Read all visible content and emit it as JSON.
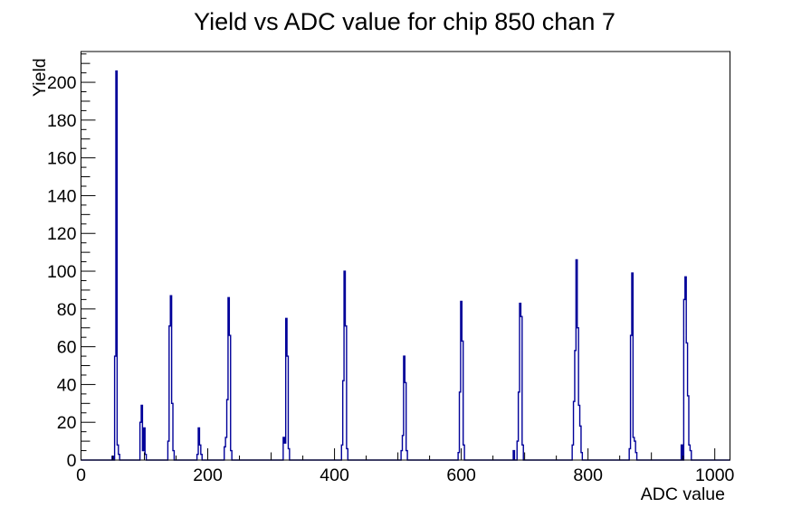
{
  "chart_data": {
    "type": "bar",
    "subtype": "histogram-step-outline",
    "title": "Yield vs ADC value for chip 850 chan 7",
    "xlabel": "ADC value",
    "ylabel": "Yield",
    "xlim": [
      0,
      1024
    ],
    "ylim": [
      0,
      216.3
    ],
    "xticks_major": [
      0,
      200,
      400,
      600,
      800,
      1000
    ],
    "yticks_major": [
      0,
      20,
      40,
      60,
      80,
      100,
      120,
      140,
      160,
      180,
      200
    ],
    "x_minor_step": 50,
    "x_medium_step": 100,
    "y_minor_step": 5,
    "y_medium_step": 10,
    "grid": false,
    "legend": false,
    "frame_color": "#000000",
    "line_color": "#000099",
    "bin_width": 2,
    "bins": [
      [
        50,
        2
      ],
      [
        54,
        55
      ],
      [
        56,
        206
      ],
      [
        58,
        8
      ],
      [
        60,
        3
      ],
      [
        94,
        20
      ],
      [
        96,
        29
      ],
      [
        98,
        5
      ],
      [
        100,
        17
      ],
      [
        102,
        3
      ],
      [
        138,
        10
      ],
      [
        140,
        71
      ],
      [
        142,
        87
      ],
      [
        144,
        30
      ],
      [
        146,
        5
      ],
      [
        184,
        3
      ],
      [
        186,
        17
      ],
      [
        188,
        8
      ],
      [
        190,
        3
      ],
      [
        227,
        7
      ],
      [
        229,
        12
      ],
      [
        231,
        32
      ],
      [
        233,
        86
      ],
      [
        235,
        66
      ],
      [
        237,
        5
      ],
      [
        320,
        12
      ],
      [
        322,
        9
      ],
      [
        324,
        75
      ],
      [
        326,
        55
      ],
      [
        328,
        6
      ],
      [
        412,
        8
      ],
      [
        414,
        42
      ],
      [
        416,
        100
      ],
      [
        418,
        71
      ],
      [
        420,
        6
      ],
      [
        506,
        5
      ],
      [
        508,
        13
      ],
      [
        510,
        55
      ],
      [
        512,
        41
      ],
      [
        514,
        5
      ],
      [
        596,
        4
      ],
      [
        598,
        36
      ],
      [
        600,
        84
      ],
      [
        602,
        63
      ],
      [
        604,
        8
      ],
      [
        683,
        5
      ],
      [
        689,
        10
      ],
      [
        691,
        36
      ],
      [
        693,
        83
      ],
      [
        695,
        76
      ],
      [
        697,
        8
      ],
      [
        776,
        8
      ],
      [
        778,
        31
      ],
      [
        780,
        58
      ],
      [
        782,
        106
      ],
      [
        784,
        70
      ],
      [
        786,
        29
      ],
      [
        788,
        18
      ],
      [
        790,
        4
      ],
      [
        866,
        6
      ],
      [
        868,
        66
      ],
      [
        870,
        99
      ],
      [
        872,
        12
      ],
      [
        874,
        10
      ],
      [
        876,
        4
      ],
      [
        948,
        8
      ],
      [
        952,
        85
      ],
      [
        954,
        97
      ],
      [
        956,
        62
      ],
      [
        958,
        34
      ],
      [
        960,
        8
      ],
      [
        962,
        5
      ]
    ]
  }
}
